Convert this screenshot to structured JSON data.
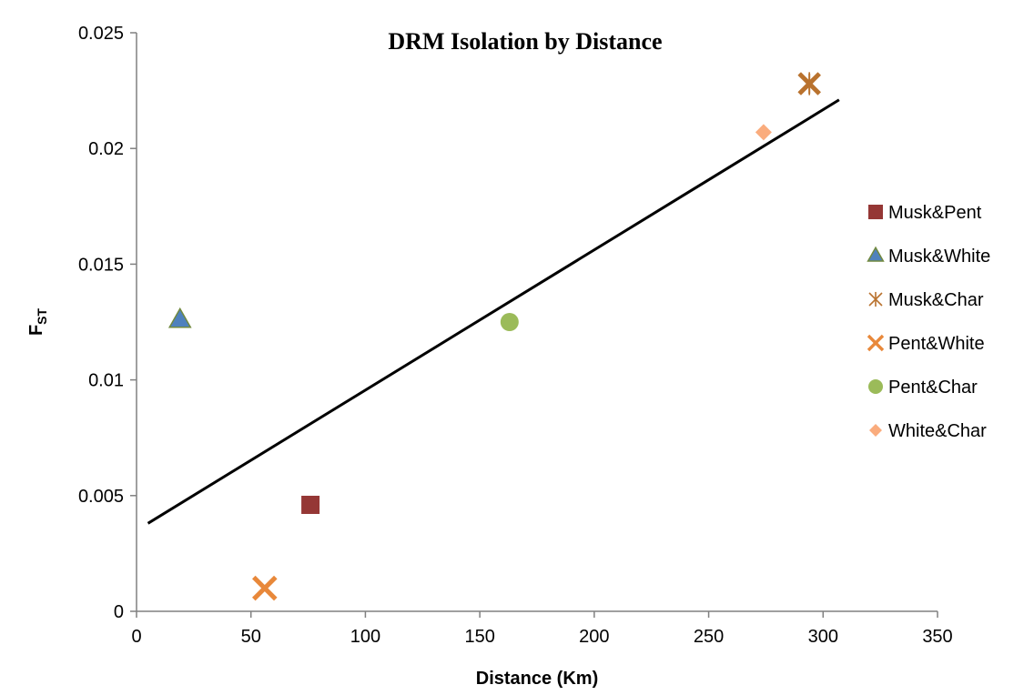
{
  "chart_data": {
    "type": "scatter",
    "title": "DRM Isolation by Distance",
    "xlabel": "Distance (Km)",
    "ylabel": {
      "main": "F",
      "sub": "ST"
    },
    "xlim": [
      0,
      350
    ],
    "ylim": [
      0,
      0.025
    ],
    "x_ticks": [
      "0",
      "50",
      "100",
      "150",
      "200",
      "250",
      "300",
      "350"
    ],
    "y_ticks": [
      "0",
      "0.005",
      "0.01",
      "0.015",
      "0.02",
      "0.025"
    ],
    "grid": false,
    "legend_position": "right",
    "series": [
      {
        "name": "Musk&Pent",
        "marker": "square",
        "color": "#953735",
        "points": [
          {
            "x": 76,
            "y": 0.0046
          }
        ]
      },
      {
        "name": "Musk&White",
        "marker": "triangle",
        "color": "#4F81BD",
        "points": [
          {
            "x": 19,
            "y": 0.0126
          }
        ]
      },
      {
        "name": "Musk&Char",
        "marker": "star",
        "color": "#B9722E",
        "points": [
          {
            "x": 294,
            "y": 0.0228
          }
        ]
      },
      {
        "name": "Pent&White",
        "marker": "x",
        "color": "#E8883A",
        "points": [
          {
            "x": 56,
            "y": 0.001
          }
        ]
      },
      {
        "name": "Pent&Char",
        "marker": "circle",
        "color": "#9BBB59",
        "points": [
          {
            "x": 163,
            "y": 0.0125
          }
        ]
      },
      {
        "name": "White&Char",
        "marker": "diamond",
        "color": "#FAAC7D",
        "points": [
          {
            "x": 274,
            "y": 0.0207
          }
        ]
      }
    ],
    "trendline": {
      "type": "linear",
      "color": "#000000",
      "points": [
        {
          "x": 5,
          "y": 0.0038
        },
        {
          "x": 307,
          "y": 0.0221
        }
      ]
    }
  }
}
